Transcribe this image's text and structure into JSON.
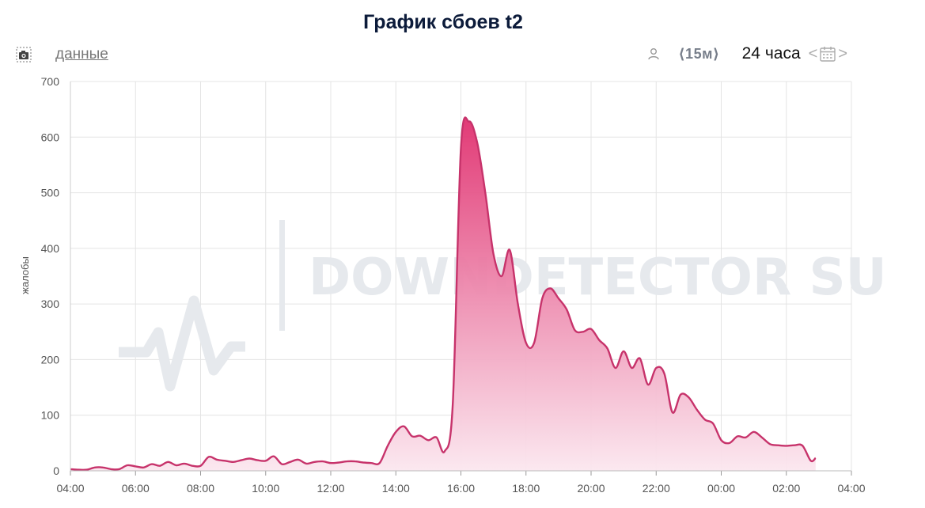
{
  "title": "График сбоев t2",
  "toolbar": {
    "camera_icon": "camera-icon",
    "data_link": "данные",
    "user_icon": "user-icon",
    "interval": "⟨15м⟩",
    "range": "24 часа",
    "prev": "<",
    "next": ">",
    "calendar_icon": "calendar-icon"
  },
  "watermark": "DOWNDETECTOR SU",
  "colors": {
    "line": "#c7336b",
    "fill_top": "#e0306f",
    "fill_bottom": "#fbe7ef",
    "grid": "#e4e4e4"
  },
  "chart_data": {
    "type": "area",
    "ylabel": "жалобы",
    "ylim": [
      0,
      700
    ],
    "yticks": [
      0,
      100,
      200,
      300,
      400,
      500,
      600,
      700
    ],
    "xlim": [
      4,
      28
    ],
    "xticks": [
      {
        "v": 4,
        "label": "04:00"
      },
      {
        "v": 6,
        "label": "06:00"
      },
      {
        "v": 8,
        "label": "08:00"
      },
      {
        "v": 10,
        "label": "10:00"
      },
      {
        "v": 12,
        "label": "12:00"
      },
      {
        "v": 14,
        "label": "14:00"
      },
      {
        "v": 16,
        "label": "16:00"
      },
      {
        "v": 18,
        "label": "18:00"
      },
      {
        "v": 20,
        "label": "20:00"
      },
      {
        "v": 22,
        "label": "22:00"
      },
      {
        "v": 24,
        "label": "00:00"
      },
      {
        "v": 26,
        "label": "02:00"
      },
      {
        "v": 28,
        "label": "04:00"
      }
    ],
    "grid": true,
    "series": [
      {
        "points": [
          [
            4.0,
            3
          ],
          [
            4.25,
            2
          ],
          [
            4.5,
            2
          ],
          [
            4.75,
            6
          ],
          [
            5.0,
            6
          ],
          [
            5.25,
            3
          ],
          [
            5.5,
            3
          ],
          [
            5.75,
            10
          ],
          [
            6.0,
            8
          ],
          [
            6.25,
            6
          ],
          [
            6.5,
            12
          ],
          [
            6.75,
            9
          ],
          [
            7.0,
            16
          ],
          [
            7.25,
            10
          ],
          [
            7.5,
            13
          ],
          [
            7.75,
            9
          ],
          [
            8.0,
            9
          ],
          [
            8.25,
            25
          ],
          [
            8.5,
            20
          ],
          [
            8.75,
            18
          ],
          [
            9.0,
            16
          ],
          [
            9.25,
            19
          ],
          [
            9.5,
            22
          ],
          [
            9.75,
            19
          ],
          [
            10.0,
            18
          ],
          [
            10.25,
            26
          ],
          [
            10.5,
            12
          ],
          [
            10.75,
            16
          ],
          [
            11.0,
            20
          ],
          [
            11.25,
            13
          ],
          [
            11.5,
            16
          ],
          [
            11.75,
            17
          ],
          [
            12.0,
            14
          ],
          [
            12.25,
            15
          ],
          [
            12.5,
            17
          ],
          [
            12.75,
            17
          ],
          [
            13.0,
            15
          ],
          [
            13.25,
            14
          ],
          [
            13.5,
            14
          ],
          [
            13.75,
            45
          ],
          [
            14.0,
            70
          ],
          [
            14.25,
            80
          ],
          [
            14.5,
            62
          ],
          [
            14.75,
            63
          ],
          [
            15.0,
            55
          ],
          [
            15.25,
            60
          ],
          [
            15.5,
            35
          ],
          [
            15.75,
            120
          ],
          [
            16.0,
            580
          ],
          [
            16.25,
            628
          ],
          [
            16.5,
            590
          ],
          [
            16.75,
            500
          ],
          [
            17.0,
            390
          ],
          [
            17.25,
            350
          ],
          [
            17.5,
            397
          ],
          [
            17.75,
            300
          ],
          [
            18.0,
            230
          ],
          [
            18.25,
            230
          ],
          [
            18.5,
            310
          ],
          [
            18.75,
            328
          ],
          [
            19.0,
            310
          ],
          [
            19.25,
            290
          ],
          [
            19.5,
            253
          ],
          [
            19.75,
            250
          ],
          [
            20.0,
            255
          ],
          [
            20.25,
            235
          ],
          [
            20.5,
            220
          ],
          [
            20.75,
            185
          ],
          [
            21.0,
            215
          ],
          [
            21.25,
            185
          ],
          [
            21.5,
            202
          ],
          [
            21.75,
            155
          ],
          [
            22.0,
            185
          ],
          [
            22.25,
            175
          ],
          [
            22.5,
            105
          ],
          [
            22.75,
            137
          ],
          [
            23.0,
            132
          ],
          [
            23.25,
            110
          ],
          [
            23.5,
            92
          ],
          [
            23.75,
            85
          ],
          [
            24.0,
            55
          ],
          [
            24.25,
            50
          ],
          [
            24.5,
            62
          ],
          [
            24.75,
            60
          ],
          [
            25.0,
            70
          ],
          [
            25.25,
            60
          ],
          [
            25.5,
            48
          ],
          [
            25.75,
            46
          ],
          [
            26.0,
            45
          ],
          [
            26.25,
            46
          ],
          [
            26.5,
            45
          ],
          [
            26.75,
            18
          ],
          [
            26.9,
            23
          ]
        ]
      }
    ]
  }
}
